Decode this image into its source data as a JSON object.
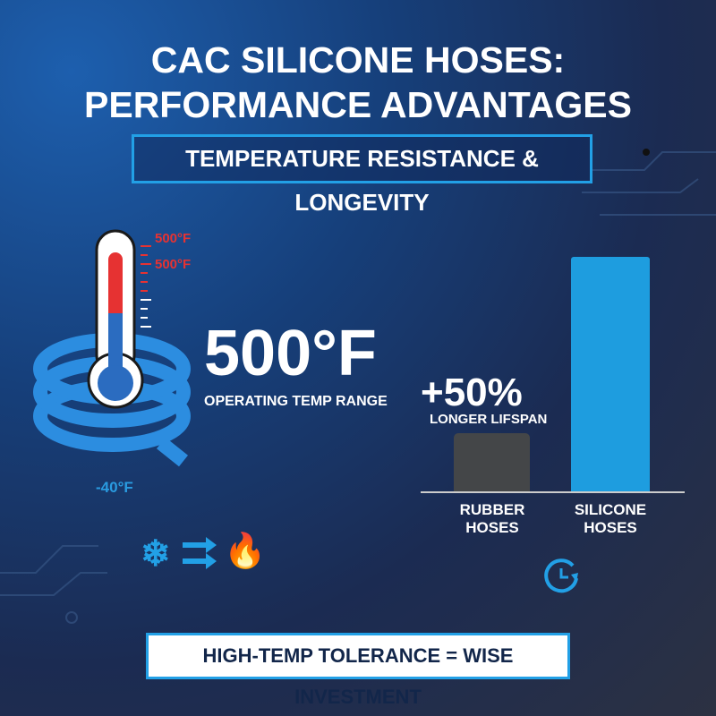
{
  "title": {
    "line1": "CAC SILICONE HOSES:",
    "line2": "PERFORMANCE ADVANTAGES"
  },
  "subtitle": "TEMPERATURE RESISTANCE & LONGEVITY",
  "thermometer": {
    "label_top": "500°F",
    "label_mid": "500°F",
    "label_low": "-40°F"
  },
  "temp": {
    "value": "500°F",
    "caption": "OPERATING TEMP RANGE"
  },
  "lifespan": {
    "value": "+50%",
    "caption": "LONGER LIFSPAN"
  },
  "chart_data": {
    "type": "bar",
    "categories": [
      "RUBBER HOSES",
      "SILICONE HOSES"
    ],
    "category_lines": [
      [
        "RUBBER",
        "HOSES"
      ],
      [
        "SILICONE",
        "HOSES"
      ]
    ],
    "values": [
      25,
      100
    ],
    "colors": [
      "#444648",
      "#1e9ddf"
    ],
    "ylabel": "",
    "xlabel": ""
  },
  "icons": [
    "snowflake-icon",
    "arrows-icon",
    "flame-icon",
    "clock-refresh-icon"
  ],
  "footer": "HIGH-TEMP TOLERANCE = WISE INVESTMENT",
  "colors": {
    "accent": "#22a0e6",
    "red": "#e63232"
  }
}
